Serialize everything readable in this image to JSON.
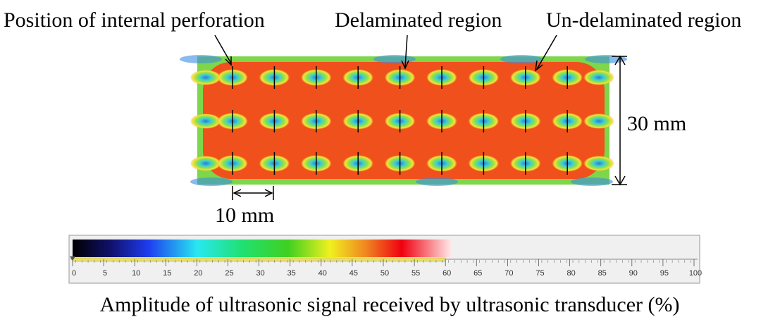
{
  "labels": {
    "perforation": "Position of internal perforation",
    "delaminated": "Delaminated region",
    "undelaminated": "Un-delaminated region",
    "height": "30 mm",
    "pitch": "10 mm"
  },
  "colorbar": {
    "min": 0,
    "max": 100,
    "ticks": [
      0,
      5,
      10,
      15,
      20,
      25,
      30,
      35,
      40,
      45,
      50,
      55,
      60,
      65,
      70,
      75,
      80,
      85,
      90,
      95,
      100
    ],
    "fill_end": 60
  },
  "caption": "Amplitude of ultrasonic signal received by ultrasonic transducer (%)"
}
